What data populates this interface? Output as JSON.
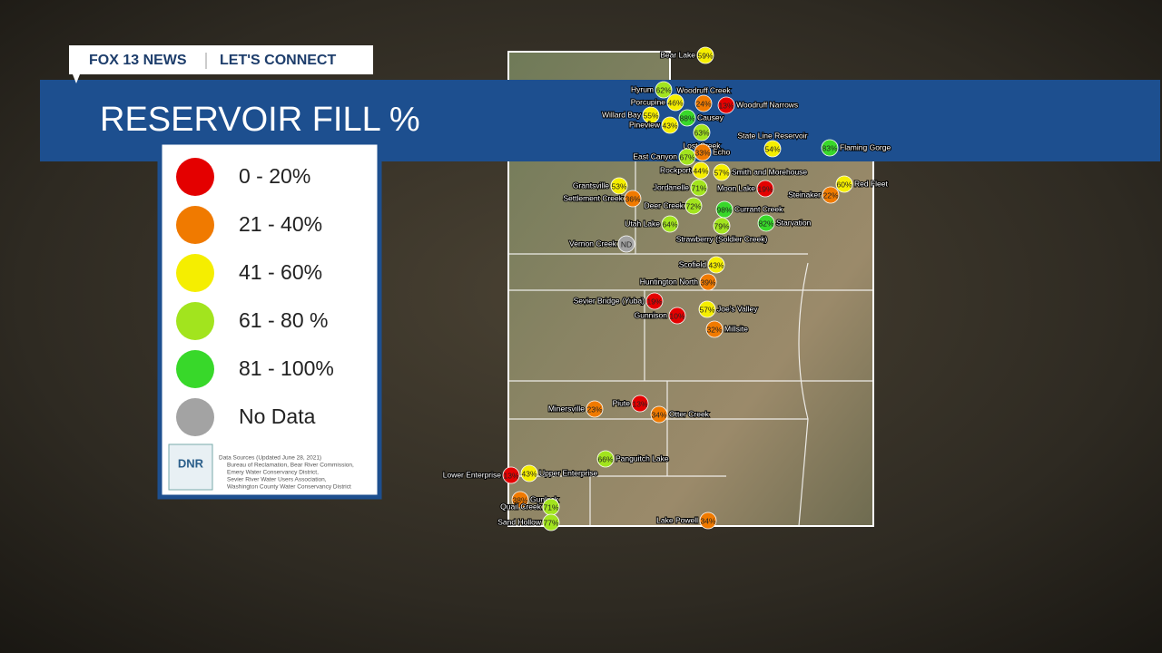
{
  "header": {
    "brand": "FOX 13 NEWS",
    "section": "LET'S CONNECT",
    "title": "RESERVOIR FILL %"
  },
  "legend": [
    {
      "label": "0 - 20%",
      "color": "#e40000"
    },
    {
      "label": "21 - 40%",
      "color": "#f07a00"
    },
    {
      "label": "41 - 60%",
      "color": "#f5ee00"
    },
    {
      "label": "61 - 80 %",
      "color": "#a2e41e"
    },
    {
      "label": "81 - 100%",
      "color": "#38d82a"
    },
    {
      "label": "No Data",
      "color": "#a3a3a3"
    }
  ],
  "sources": {
    "logo": "DNR",
    "lines": [
      "Data Sources (Updated June 28, 2021)",
      "Bureau of Reclamation, Bear River Commission,",
      "Emery Water Conservancy District,",
      "Sevier River Water Users Association,",
      "Washington County Water Conservancy District"
    ]
  },
  "reservoirs": [
    {
      "name": "Bear Lake",
      "label": "59%",
      "color": "#f5ee00"
    },
    {
      "name": "Hyrum",
      "label": "62%",
      "color": "#a2e41e"
    },
    {
      "name": "Woodruff Creek",
      "label": "24%",
      "color": "#f07a00"
    },
    {
      "name": "Woodruff Narrows",
      "label": "13%",
      "color": "#e40000"
    },
    {
      "name": "Porcupine",
      "label": "46%",
      "color": "#f5ee00"
    },
    {
      "name": "Willard Bay",
      "label": "55%",
      "color": "#f5ee00"
    },
    {
      "name": "Causey",
      "label": "88%",
      "color": "#38d82a"
    },
    {
      "name": "Pineview",
      "label": "43%",
      "color": "#f5ee00"
    },
    {
      "name": "Lost Creek",
      "label": "63%",
      "color": "#a2e41e"
    },
    {
      "name": "East Canyon",
      "label": "67%",
      "color": "#a2e41e"
    },
    {
      "name": "Echo",
      "label": "33%",
      "color": "#f07a00"
    },
    {
      "name": "State Line Reservoir",
      "label": "54%",
      "color": "#f5ee00"
    },
    {
      "name": "Flaming Gorge",
      "label": "83%",
      "color": "#38d82a"
    },
    {
      "name": "Rockport",
      "label": "44%",
      "color": "#f5ee00"
    },
    {
      "name": "Smith and Morehouse",
      "label": "57%",
      "color": "#f5ee00"
    },
    {
      "name": "Grantsville",
      "label": "53%",
      "color": "#f5ee00"
    },
    {
      "name": "Jordanelle",
      "label": "71%",
      "color": "#a2e41e"
    },
    {
      "name": "Moon Lake",
      "label": "19%",
      "color": "#e40000"
    },
    {
      "name": "Red Fleet",
      "label": "60%",
      "color": "#f5ee00"
    },
    {
      "name": "Steinaker",
      "label": "22%",
      "color": "#f07a00"
    },
    {
      "name": "Settlement Creek",
      "label": "36%",
      "color": "#f07a00"
    },
    {
      "name": "Deer Creek",
      "label": "72%",
      "color": "#a2e41e"
    },
    {
      "name": "Currant Creek",
      "label": "98%",
      "color": "#38d82a"
    },
    {
      "name": "Utah Lake",
      "label": "64%",
      "color": "#a2e41e"
    },
    {
      "name": "Starvation",
      "label": "82%",
      "color": "#38d82a"
    },
    {
      "name": "Strawberry (Soldier Creek)",
      "label": "79%",
      "color": "#a2e41e"
    },
    {
      "name": "Vernon Creek",
      "label": "ND",
      "color": "#a3a3a3"
    },
    {
      "name": "Scofield",
      "label": "43%",
      "color": "#f5ee00"
    },
    {
      "name": "Huntington North",
      "label": "39%",
      "color": "#f07a00"
    },
    {
      "name": "Sevier Bridge (Yuba)",
      "label": "19%",
      "color": "#e40000"
    },
    {
      "name": "Joe's Valley",
      "label": "57%",
      "color": "#f5ee00"
    },
    {
      "name": "Gunnison",
      "label": "10%",
      "color": "#e40000"
    },
    {
      "name": "Millsite",
      "label": "32%",
      "color": "#f07a00"
    },
    {
      "name": "Minersville",
      "label": "23%",
      "color": "#f07a00"
    },
    {
      "name": "Piute",
      "label": "13%",
      "color": "#e40000"
    },
    {
      "name": "Otter Creek",
      "label": "34%",
      "color": "#f07a00"
    },
    {
      "name": "Panguitch Lake",
      "label": "66%",
      "color": "#a2e41e"
    },
    {
      "name": "Lower Enterprise",
      "label": "13%",
      "color": "#e40000"
    },
    {
      "name": "Upper Enterprise",
      "label": "43%",
      "color": "#f5ee00"
    },
    {
      "name": "Gunlock",
      "label": "38%",
      "color": "#f07a00"
    },
    {
      "name": "Quail Creek",
      "label": "71%",
      "color": "#a2e41e"
    },
    {
      "name": "Sand Hollow",
      "label": "77%",
      "color": "#a2e41e"
    },
    {
      "name": "Lake Powell",
      "label": "34%",
      "color": "#f07a00"
    }
  ]
}
